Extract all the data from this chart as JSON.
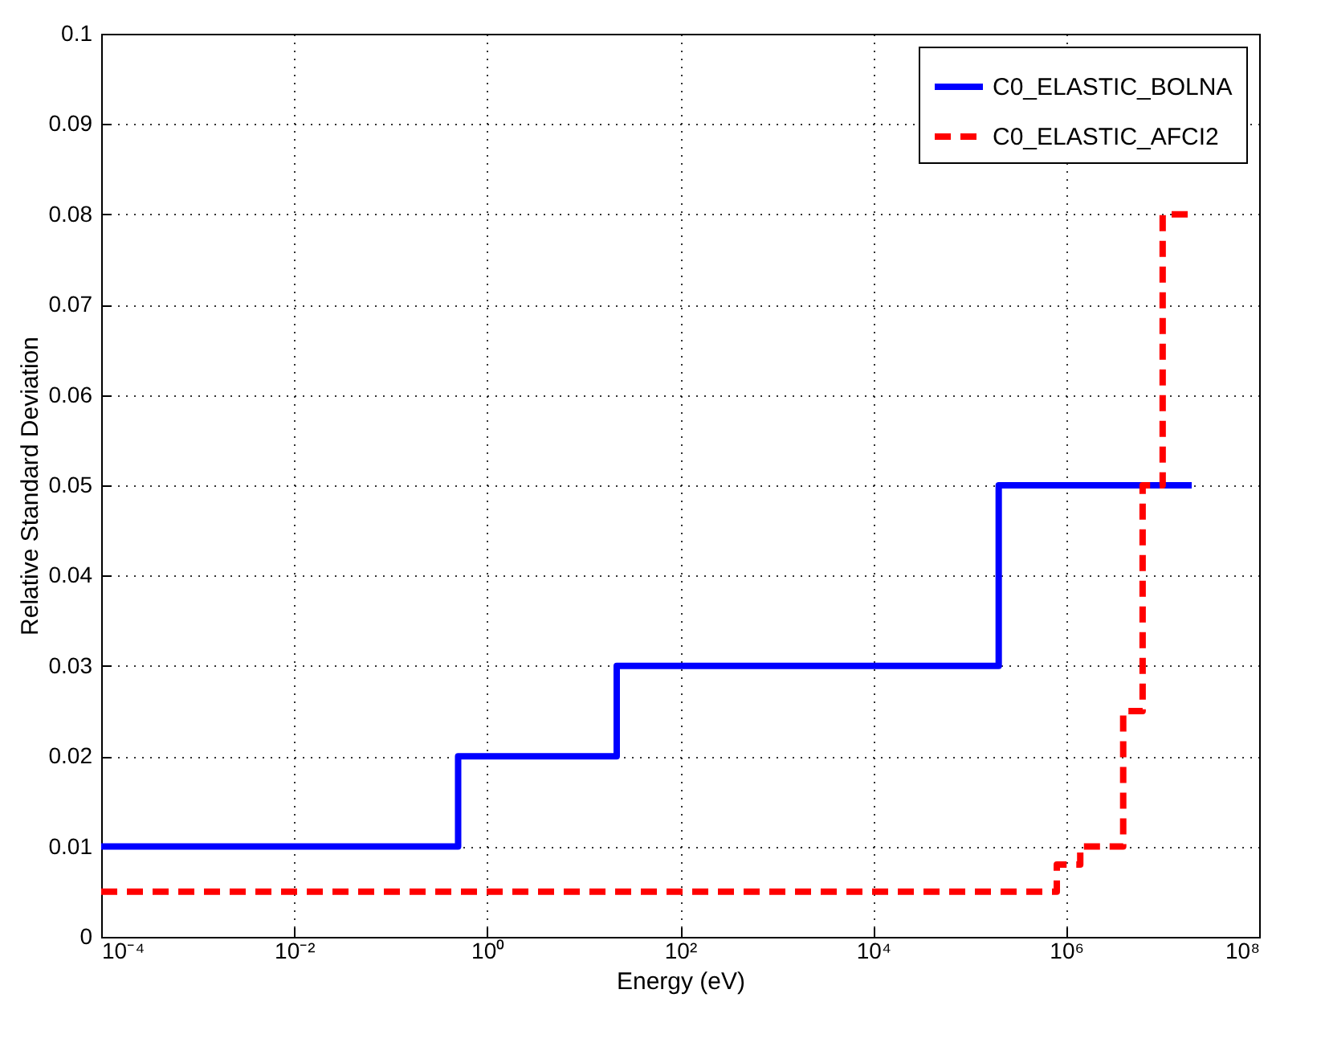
{
  "chart_data": {
    "type": "step",
    "xlabel": "Energy (eV)",
    "ylabel": "Relative Standard Deviation",
    "log": "x",
    "grid": true,
    "legend": "top right",
    "xlim": [
      0.0001,
      100000000
    ],
    "ylim": [
      0,
      0.1
    ],
    "xticks": [
      {
        "value": 0.0001,
        "label": "10⁻⁴"
      },
      {
        "value": 0.01,
        "label": "10⁻²"
      },
      {
        "value": 1,
        "label": "10⁰"
      },
      {
        "value": 100,
        "label": "10²"
      },
      {
        "value": 10000,
        "label": "10⁴"
      },
      {
        "value": 1000000,
        "label": "10⁶"
      },
      {
        "value": 100000000,
        "label": "10⁸"
      }
    ],
    "yticks": [
      0,
      0.01,
      0.02,
      0.03,
      0.04,
      0.05,
      0.06,
      0.07,
      0.08,
      0.09,
      0.1
    ],
    "series": [
      {
        "name": "C0_ELASTIC_BOLNA",
        "color": "#0000ff",
        "line_style": "solid",
        "x": [
          0.0001,
          0.5,
          22,
          200000,
          20000000
        ],
        "values": [
          0.01,
          0.02,
          0.03,
          0.05,
          0.05
        ]
      },
      {
        "name": "C0_ELASTIC_AFCI2",
        "color": "#ff0000",
        "line_style": "dashed",
        "x": [
          0.0001,
          800000,
          1400000,
          3900000,
          6200000,
          10000000,
          19000000
        ],
        "values": [
          0.005,
          0.008,
          0.01,
          0.025,
          0.05,
          0.08,
          0.08
        ]
      }
    ]
  }
}
